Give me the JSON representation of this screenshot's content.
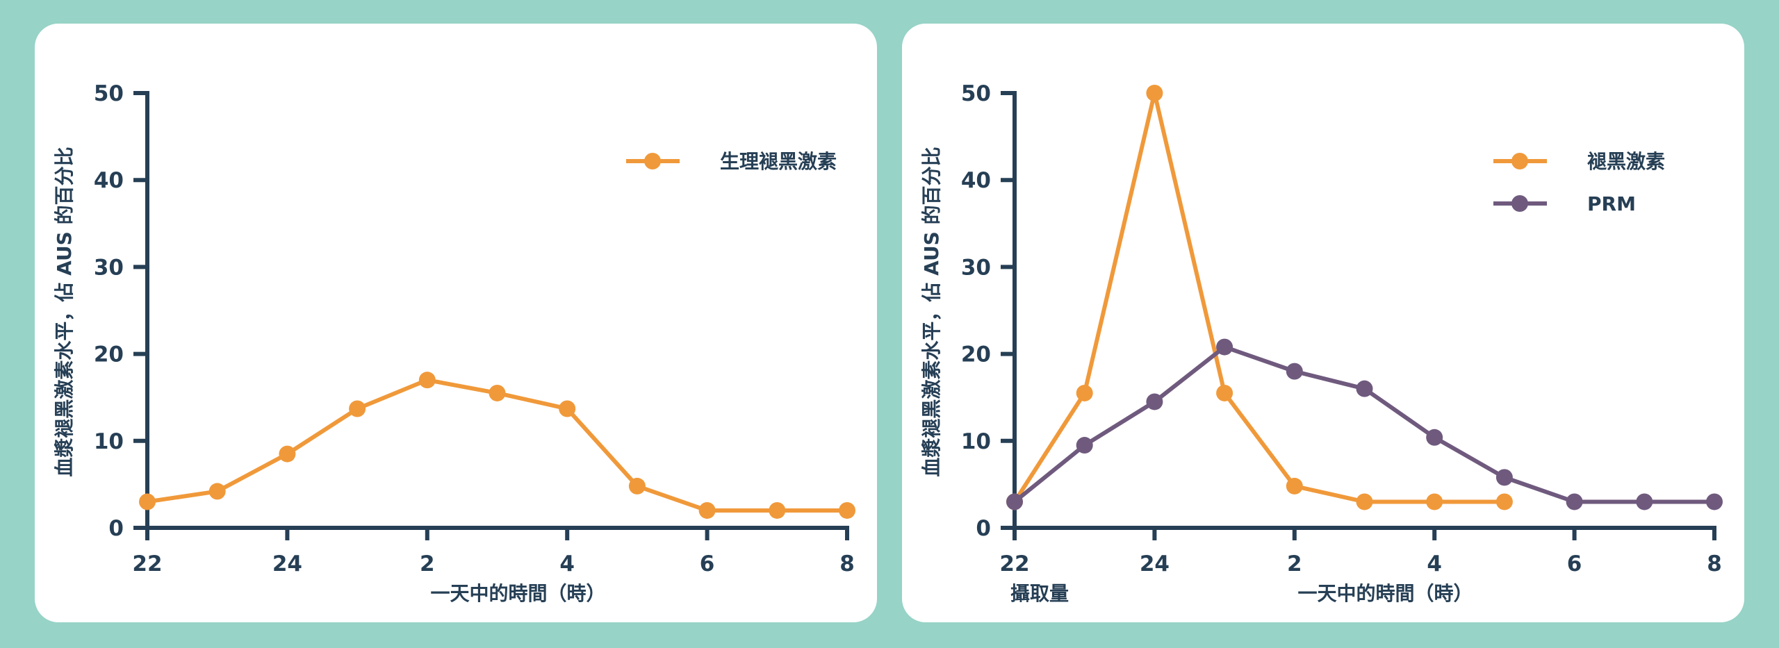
{
  "colors": {
    "background": "#97d3c7",
    "panel": "#ffffff",
    "axis": "#263f55",
    "orange": "#f0993a",
    "purple": "#6f5a7e"
  },
  "chart_data": [
    {
      "type": "line",
      "ylabel": "血漿褪黑激素水平，佔 AUS 的百分比",
      "xlabel": "一天中的時間（時）",
      "xlim": [
        22,
        32
      ],
      "ylim": [
        0,
        50
      ],
      "x_ticks": [
        22,
        24,
        26,
        28,
        30,
        32
      ],
      "x_tick_labels": [
        "22",
        "24",
        "2",
        "4",
        "6",
        "8"
      ],
      "y_ticks": [
        0,
        10,
        20,
        30,
        40,
        50
      ],
      "y_tick_labels": [
        "0",
        "10",
        "20",
        "30",
        "40",
        "50"
      ],
      "legend_position": "top-right",
      "annotation": "",
      "series": [
        {
          "name": "生理褪黑激素",
          "color": "#f0993a",
          "x": [
            22,
            23,
            24,
            25,
            26,
            27,
            28,
            29,
            30,
            31,
            32
          ],
          "y": [
            3,
            4.2,
            8.5,
            13.7,
            17,
            15.5,
            13.7,
            4.8,
            2,
            2,
            2
          ]
        }
      ]
    },
    {
      "type": "line",
      "ylabel": "血漿褪黑激素水平，佔 AUS 的百分比",
      "xlabel": "一天中的時間（時）",
      "xlim": [
        22,
        32
      ],
      "ylim": [
        0,
        50
      ],
      "x_ticks": [
        22,
        24,
        26,
        28,
        30,
        32
      ],
      "x_tick_labels": [
        "22",
        "24",
        "2",
        "4",
        "6",
        "8"
      ],
      "y_ticks": [
        0,
        10,
        20,
        30,
        40,
        50
      ],
      "y_tick_labels": [
        "0",
        "10",
        "20",
        "30",
        "40",
        "50"
      ],
      "legend_position": "top-right",
      "annotation": "攝取量",
      "series": [
        {
          "name": "褪黑激素",
          "color": "#f0993a",
          "x": [
            22,
            23,
            24,
            25,
            26,
            27,
            28,
            29
          ],
          "y": [
            3,
            15.5,
            50,
            15.5,
            4.8,
            3,
            3,
            3
          ]
        },
        {
          "name": "PRM",
          "color": "#6f5a7e",
          "x": [
            22,
            23,
            24,
            25,
            26,
            27,
            28,
            29,
            30,
            31,
            32
          ],
          "y": [
            3,
            9.5,
            14.5,
            20.8,
            18,
            16,
            10.4,
            5.8,
            3,
            3,
            3
          ]
        }
      ]
    }
  ]
}
